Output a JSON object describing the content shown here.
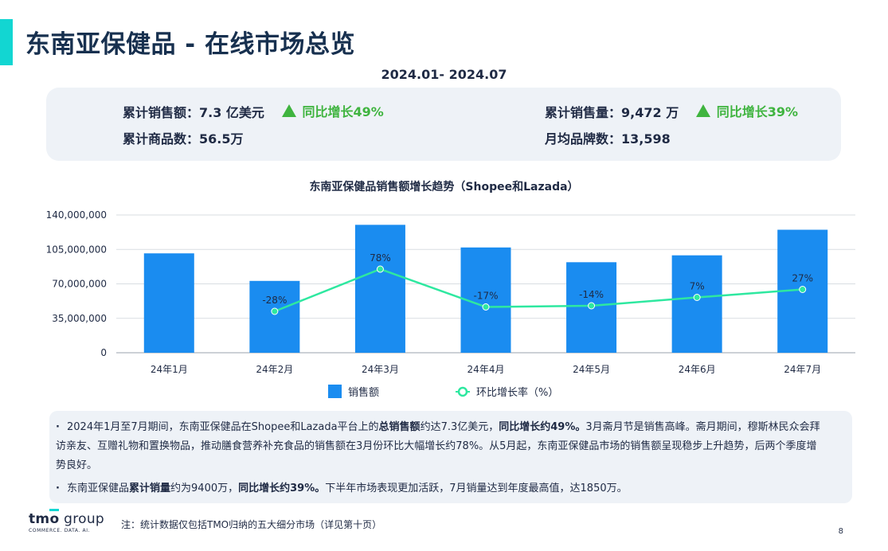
{
  "title": "东南亚保健品 - 在线市场总览",
  "period": "2024.01- 2024.07",
  "kpis": {
    "sales_label": "累计销售额：",
    "sales_value": "7.3 亿美元",
    "sales_growth": "同比增长49%",
    "volume_label": "累计销售量：",
    "volume_value": "9,472 万",
    "volume_growth": "同比增长39%",
    "products_label": "累计商品数：",
    "products_value": "56.5万",
    "brands_label": "月均品牌数：",
    "brands_value": "13,598"
  },
  "chart_data": {
    "type": "bar+line",
    "title": "东南亚保健品销售额增长趋势（Shopee和Lazada）",
    "categories": [
      "24年1月",
      "24年2月",
      "24年3月",
      "24年4月",
      "24年5月",
      "24年6月",
      "24年7月"
    ],
    "series": [
      {
        "name": "销售额",
        "type": "bar",
        "color": "#1a8cf0",
        "values": [
          101000000,
          73000000,
          130000000,
          107000000,
          92000000,
          99000000,
          125000000
        ]
      },
      {
        "name": "环比增长率（%）",
        "type": "line",
        "color": "#2ee8a0",
        "values": [
          null,
          -28,
          78,
          -17,
          -14,
          7,
          27
        ],
        "labels": [
          "",
          "-28%",
          "78%",
          "-17%",
          "-14%",
          "7%",
          "27%"
        ]
      }
    ],
    "ylim": [
      0,
      140000000
    ],
    "yticks": [
      0,
      35000000,
      70000000,
      105000000,
      140000000
    ],
    "ytick_labels": [
      "0",
      "35,000,000",
      "70,000,000",
      "105,000,000",
      "140,000,000"
    ],
    "grid": true,
    "legend": "bottom"
  },
  "notes": {
    "n1_a": "2024年1月至7月期间，东南亚保健品在Shopee和Lazada平台上的",
    "n1_b1": "总销售额",
    "n1_c": "约达7.3亿美元，",
    "n1_b2": "同比增长约49%。",
    "n1_d": "3月斋月节是销售高峰。斋月期间，穆斯林民众会拜访亲友、互赠礼物和置换物品，推动膳食营养补充食品的销售额在3月份环比大幅增长约78%。从5月起，东南亚保健品市场的销售额呈现稳步上升趋势，后两个季度增势良好。",
    "n2_a": "东南亚保健品",
    "n2_b1": "累计销量",
    "n2_c": "约为9400万，",
    "n2_b2": "同比增长约39%。",
    "n2_d": "下半年市场表现更加活跃，7月销量达到年度最高值，达1850万。"
  },
  "brand": {
    "name_a": "tm",
    "name_o": "o",
    "name_b": " group",
    "tagline": "COMMERCE. DATA. AI."
  },
  "footnote": "注：统计数据仅包括TMO归纳的五大细分市场（详见第十页）",
  "page_number": "8"
}
